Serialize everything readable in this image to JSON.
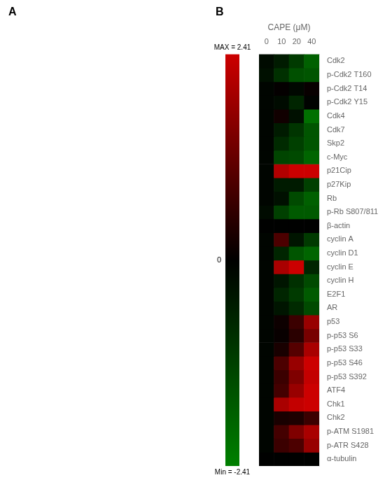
{
  "chart_data": {
    "type": "heatmap",
    "annotations": [
      "A",
      "B"
    ],
    "x_label": "CAPE (μM)",
    "categories": [
      "0",
      "10",
      "20",
      "40"
    ],
    "rows": [
      "Cdk2",
      "p-Cdk2 T160",
      "p-Cdk2 T14",
      "p-Cdk2 Y15",
      "Cdk4",
      "Cdk7",
      "Skp2",
      "c-Myc",
      "p21Cip",
      "p27Kip",
      "Rb",
      "p-Rb S807/811",
      "β-actin",
      "cyclin A",
      "cyclin D1",
      "cyclin E",
      "cyclin H",
      "E2F1",
      "AR",
      "p53",
      "p-p53 S6",
      "p-p53 S33",
      "p-p53 S46",
      "p-p53 S392",
      "ATF4",
      "Chk1",
      "Chk2",
      "p-ATM S1981",
      "p-ATR S428",
      "α-tubulin"
    ],
    "values": [
      [
        -0.2,
        -0.5,
        -1.1,
        -1.8
      ],
      [
        -0.3,
        -0.9,
        -1.5,
        -1.6
      ],
      [
        -0.1,
        0.05,
        -0.15,
        0.1
      ],
      [
        -0.1,
        -0.2,
        -0.7,
        -0.05
      ],
      [
        -0.1,
        0.2,
        -0.3,
        -2.1
      ],
      [
        -0.1,
        -0.5,
        -1.0,
        -1.6
      ],
      [
        -0.1,
        -0.8,
        -1.2,
        -1.6
      ],
      [
        -0.1,
        -1.3,
        -1.4,
        -1.9
      ],
      [
        -0.1,
        2.1,
        2.41,
        2.41
      ],
      [
        -0.1,
        -0.5,
        -0.5,
        -1.2
      ],
      [
        -0.1,
        -0.3,
        -1.4,
        -1.8
      ],
      [
        -0.2,
        -1.2,
        -1.7,
        -1.7
      ],
      [
        -0.02,
        -0.02,
        -0.02,
        -0.02
      ],
      [
        -0.1,
        0.9,
        -0.4,
        -1.1
      ],
      [
        -0.1,
        -0.7,
        -1.6,
        -1.9
      ],
      [
        -0.1,
        2.0,
        2.41,
        -0.7
      ],
      [
        -0.1,
        -0.4,
        -0.9,
        -1.4
      ],
      [
        -0.1,
        -0.7,
        -1.1,
        -1.7
      ],
      [
        -0.1,
        -0.4,
        -0.8,
        -1.4
      ],
      [
        -0.1,
        0.15,
        0.7,
        1.8
      ],
      [
        -0.1,
        0.1,
        0.5,
        1.4
      ],
      [
        -0.1,
        0.3,
        1.0,
        2.0
      ],
      [
        -0.1,
        0.9,
        1.8,
        2.41
      ],
      [
        -0.1,
        0.7,
        1.5,
        2.3
      ],
      [
        -0.1,
        0.8,
        1.8,
        2.41
      ],
      [
        -0.1,
        2.0,
        2.3,
        2.41
      ],
      [
        -0.1,
        0.3,
        0.35,
        0.7
      ],
      [
        -0.1,
        0.8,
        1.5,
        2.0
      ],
      [
        -0.1,
        0.7,
        0.9,
        1.8
      ],
      [
        -0.02,
        -0.02,
        -0.02,
        -0.02
      ]
    ],
    "zlim": [
      -2.41,
      2.41
    ],
    "colorbar_ticks": [
      0
    ],
    "colorbar_labels": [
      "MAX = 2.41",
      "Min = -2.41"
    ],
    "colormap": [
      "#008000",
      "#000000",
      "#cc0000"
    ],
    "grid": false
  }
}
